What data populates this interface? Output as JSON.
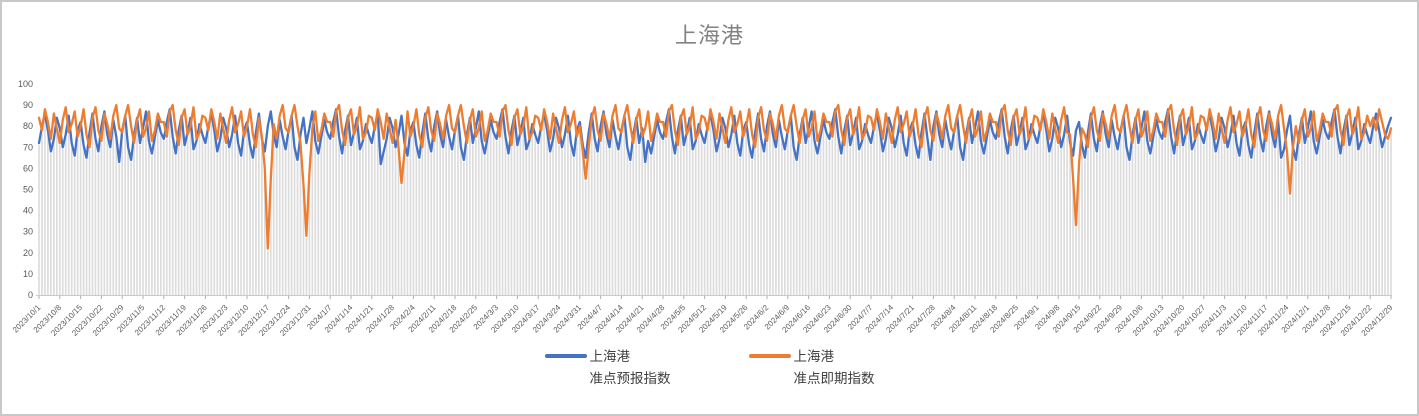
{
  "title": "上海港",
  "legend": [
    {
      "line1": "上海港",
      "line2": "准点预报指数",
      "color": "#4472C4"
    },
    {
      "line1": "上海港",
      "line2": "准点即期指数",
      "color": "#ED7D31"
    }
  ],
  "chart_data": {
    "type": "line",
    "title": "上海港",
    "ylim": [
      0,
      100
    ],
    "y_tick_step": 10,
    "y_ticks": [
      0,
      10,
      20,
      30,
      40,
      50,
      60,
      70,
      80,
      90,
      100
    ],
    "grid": "vertical-drop-lines-per-day",
    "legend_position": "bottom",
    "x_unit": "day",
    "x_label_every_days": 7,
    "x_tick_labels": [
      "2023/10/1",
      "2023/10/8",
      "2023/10/15",
      "2023/10/22",
      "2023/10/29",
      "2023/11/5",
      "2023/11/12",
      "2023/11/19",
      "2023/11/26",
      "2023/12/3",
      "2023/12/10",
      "2023/12/17",
      "2023/12/24",
      "2023/12/31",
      "2024/1/7",
      "2024/1/14",
      "2024/1/21",
      "2024/1/28",
      "2024/2/4",
      "2024/2/11",
      "2024/2/18",
      "2024/2/25",
      "2024/3/3",
      "2024/3/10",
      "2024/3/17",
      "2024/3/24",
      "2024/3/31",
      "2024/4/7",
      "2024/4/14",
      "2024/4/21",
      "2024/4/28",
      "2024/5/5",
      "2024/5/12",
      "2024/5/19",
      "2024/5/26",
      "2024/6/2",
      "2024/6/9",
      "2024/6/16",
      "2024/6/23",
      "2024/6/30",
      "2024/7/7",
      "2024/7/14",
      "2024/7/21",
      "2024/7/28",
      "2024/8/4",
      "2024/8/11",
      "2024/8/18",
      "2024/8/25",
      "2024/9/1",
      "2024/9/8",
      "2024/9/15",
      "2024/9/22",
      "2024/9/29",
      "2024/10/6",
      "2024/10/13",
      "2024/10/20",
      "2024/10/27",
      "2024/11/3",
      "2024/11/10",
      "2024/11/17",
      "2024/11/24",
      "2024/12/1",
      "2024/12/8",
      "2024/12/15",
      "2024/12/22",
      "2024/12/29"
    ],
    "series": [
      {
        "name": "上海港 准点预报指数",
        "color": "#4472C4",
        "values": [
          72,
          80,
          86,
          78,
          68,
          74,
          84,
          79,
          70,
          76,
          85,
          72,
          66,
          78,
          82,
          71,
          65,
          77,
          86,
          74,
          68,
          80,
          87,
          76,
          70,
          83,
          75,
          63,
          78,
          85,
          70,
          64,
          76,
          84,
          72,
          79,
          87,
          73,
          67,
          75,
          83,
          77,
          74,
          82,
          88,
          75,
          67,
          78,
          85,
          71,
          77,
          84,
          69,
          73,
          81,
          76,
          72,
          80,
          86,
          78,
          68,
          74,
          84,
          79,
          70,
          76,
          85,
          72,
          66,
          78,
          82,
          71,
          65,
          77,
          86,
          74,
          68,
          80,
          87,
          76,
          70,
          83,
          75,
          69,
          78,
          85,
          70,
          64,
          76,
          84,
          72,
          79,
          87,
          73,
          67,
          75,
          83,
          77,
          74,
          82,
          88,
          75,
          67,
          78,
          85,
          71,
          77,
          84,
          69,
          73,
          81,
          76,
          72,
          80,
          86,
          62,
          68,
          74,
          84,
          79,
          70,
          76,
          85,
          72,
          66,
          78,
          82,
          71,
          65,
          77,
          86,
          74,
          68,
          80,
          87,
          76,
          70,
          83,
          75,
          69,
          78,
          85,
          70,
          64,
          76,
          84,
          72,
          79,
          87,
          73,
          67,
          75,
          83,
          77,
          74,
          82,
          88,
          75,
          67,
          78,
          85,
          71,
          77,
          84,
          69,
          73,
          81,
          76,
          72,
          80,
          86,
          78,
          68,
          74,
          84,
          79,
          70,
          76,
          85,
          72,
          66,
          78,
          82,
          71,
          65,
          77,
          86,
          74,
          68,
          80,
          87,
          76,
          70,
          83,
          75,
          69,
          78,
          85,
          70,
          64,
          76,
          84,
          72,
          79,
          63,
          73,
          67,
          75,
          83,
          77,
          74,
          82,
          88,
          75,
          67,
          78,
          85,
          71,
          77,
          84,
          69,
          73,
          81,
          76,
          72,
          80,
          86,
          78,
          68,
          74,
          84,
          79,
          70,
          76,
          85,
          72,
          66,
          78,
          82,
          71,
          65,
          77,
          86,
          74,
          68,
          80,
          87,
          76,
          70,
          83,
          75,
          69,
          78,
          85,
          70,
          64,
          76,
          84,
          72,
          79,
          87,
          73,
          67,
          75,
          83,
          77,
          74,
          82,
          88,
          75,
          67,
          78,
          85,
          71,
          77,
          84,
          69,
          73,
          81,
          76,
          72,
          80,
          86,
          78,
          68,
          74,
          84,
          79,
          70,
          76,
          85,
          72,
          66,
          78,
          82,
          71,
          65,
          77,
          86,
          74,
          64,
          80,
          87,
          76,
          70,
          83,
          75,
          69,
          78,
          85,
          70,
          64,
          76,
          84,
          72,
          79,
          87,
          73,
          67,
          75,
          83,
          77,
          74,
          82,
          88,
          75,
          67,
          78,
          85,
          71,
          77,
          84,
          69,
          73,
          81,
          76,
          72,
          80,
          86,
          78,
          68,
          74,
          84,
          79,
          70,
          76,
          85,
          72,
          66,
          78,
          82,
          71,
          65,
          77,
          86,
          74,
          68,
          80,
          87,
          76,
          70,
          83,
          75,
          69,
          78,
          85,
          70,
          64,
          76,
          84,
          72,
          79,
          87,
          73,
          67,
          75,
          83,
          77,
          74,
          82,
          88,
          75,
          67,
          78,
          85,
          71,
          77,
          84,
          69,
          73,
          81,
          76,
          72,
          80,
          86,
          78,
          68,
          74,
          84,
          79,
          70,
          76,
          85,
          72,
          66,
          78,
          82,
          71,
          65,
          77,
          86,
          74,
          68,
          80,
          87,
          76,
          70,
          83,
          65,
          69,
          78,
          85,
          70,
          64,
          76,
          84,
          72,
          79,
          87,
          73,
          67,
          75,
          83,
          77,
          74,
          82,
          88,
          75,
          67,
          78,
          85,
          71,
          77,
          84,
          69,
          73,
          81,
          76,
          72,
          80,
          86,
          78,
          70,
          75,
          80,
          84
        ]
      },
      {
        "name": "上海港 准点即期指数",
        "color": "#ED7D31",
        "values": [
          84,
          78,
          88,
          82,
          74,
          86,
          79,
          72,
          83,
          89,
          77,
          81,
          87,
          75,
          80,
          88,
          76,
          70,
          84,
          89,
          78,
          73,
          86,
          81,
          74,
          85,
          90,
          79,
          77,
          85,
          90,
          80,
          72,
          83,
          88,
          75,
          79,
          87,
          73,
          78,
          86,
          82,
          82,
          75,
          87,
          90,
          78,
          71,
          84,
          88,
          76,
          80,
          89,
          74,
          77,
          85,
          84,
          78,
          88,
          82,
          74,
          86,
          79,
          72,
          83,
          89,
          77,
          81,
          87,
          75,
          80,
          88,
          76,
          70,
          84,
          75,
          60,
          22,
          55,
          81,
          74,
          85,
          90,
          79,
          77,
          85,
          90,
          80,
          72,
          52,
          28,
          58,
          79,
          87,
          73,
          78,
          86,
          82,
          82,
          75,
          87,
          90,
          78,
          71,
          84,
          88,
          76,
          80,
          89,
          74,
          77,
          85,
          84,
          78,
          88,
          82,
          74,
          86,
          79,
          72,
          83,
          70,
          53,
          68,
          87,
          75,
          80,
          88,
          76,
          70,
          84,
          89,
          78,
          73,
          86,
          81,
          74,
          85,
          90,
          79,
          77,
          85,
          90,
          80,
          72,
          83,
          88,
          75,
          79,
          87,
          73,
          78,
          86,
          82,
          82,
          75,
          87,
          90,
          78,
          71,
          84,
          88,
          76,
          80,
          89,
          74,
          77,
          85,
          84,
          78,
          88,
          82,
          74,
          86,
          79,
          72,
          83,
          89,
          77,
          81,
          87,
          75,
          80,
          68,
          55,
          70,
          84,
          89,
          78,
          73,
          86,
          81,
          74,
          85,
          90,
          79,
          77,
          85,
          90,
          80,
          72,
          83,
          88,
          75,
          79,
          87,
          73,
          78,
          86,
          82,
          82,
          75,
          87,
          90,
          78,
          71,
          84,
          88,
          76,
          80,
          89,
          74,
          77,
          85,
          84,
          78,
          88,
          82,
          74,
          86,
          79,
          72,
          83,
          89,
          77,
          81,
          87,
          75,
          80,
          88,
          76,
          70,
          84,
          89,
          78,
          73,
          86,
          81,
          74,
          85,
          90,
          79,
          77,
          85,
          90,
          80,
          72,
          83,
          88,
          75,
          79,
          87,
          73,
          78,
          86,
          82,
          82,
          75,
          87,
          90,
          78,
          71,
          84,
          88,
          76,
          80,
          89,
          74,
          77,
          85,
          84,
          78,
          88,
          82,
          74,
          86,
          79,
          72,
          83,
          89,
          77,
          81,
          87,
          75,
          80,
          88,
          76,
          70,
          84,
          89,
          78,
          73,
          86,
          81,
          74,
          85,
          90,
          79,
          77,
          85,
          90,
          80,
          72,
          83,
          88,
          75,
          79,
          87,
          73,
          78,
          86,
          82,
          82,
          75,
          87,
          90,
          78,
          71,
          84,
          88,
          76,
          80,
          89,
          74,
          77,
          85,
          84,
          78,
          88,
          82,
          74,
          86,
          79,
          72,
          83,
          89,
          77,
          76,
          55,
          33,
          62,
          79,
          76,
          70,
          84,
          89,
          78,
          73,
          86,
          81,
          74,
          85,
          90,
          79,
          77,
          85,
          90,
          80,
          72,
          83,
          88,
          75,
          79,
          87,
          73,
          78,
          86,
          82,
          82,
          75,
          87,
          90,
          78,
          71,
          84,
          88,
          76,
          80,
          89,
          74,
          77,
          85,
          84,
          78,
          88,
          82,
          74,
          86,
          79,
          72,
          83,
          89,
          77,
          81,
          87,
          75,
          80,
          88,
          76,
          70,
          84,
          89,
          78,
          73,
          86,
          81,
          74,
          85,
          90,
          79,
          68,
          48,
          70,
          80,
          72,
          83,
          88,
          75,
          79,
          87,
          73,
          78,
          86,
          82,
          82,
          75,
          87,
          90,
          78,
          71,
          84,
          88,
          76,
          80,
          89,
          74,
          77,
          85,
          80,
          84,
          78,
          88,
          82,
          76,
          74,
          79
        ]
      }
    ],
    "style": {
      "drop_line_color": "#DCDCDC",
      "axis_line_color": "#C9C9C9",
      "tick_color": "#AFAFAF",
      "axis_label_color": "#595959",
      "title_color": "#828282"
    }
  }
}
